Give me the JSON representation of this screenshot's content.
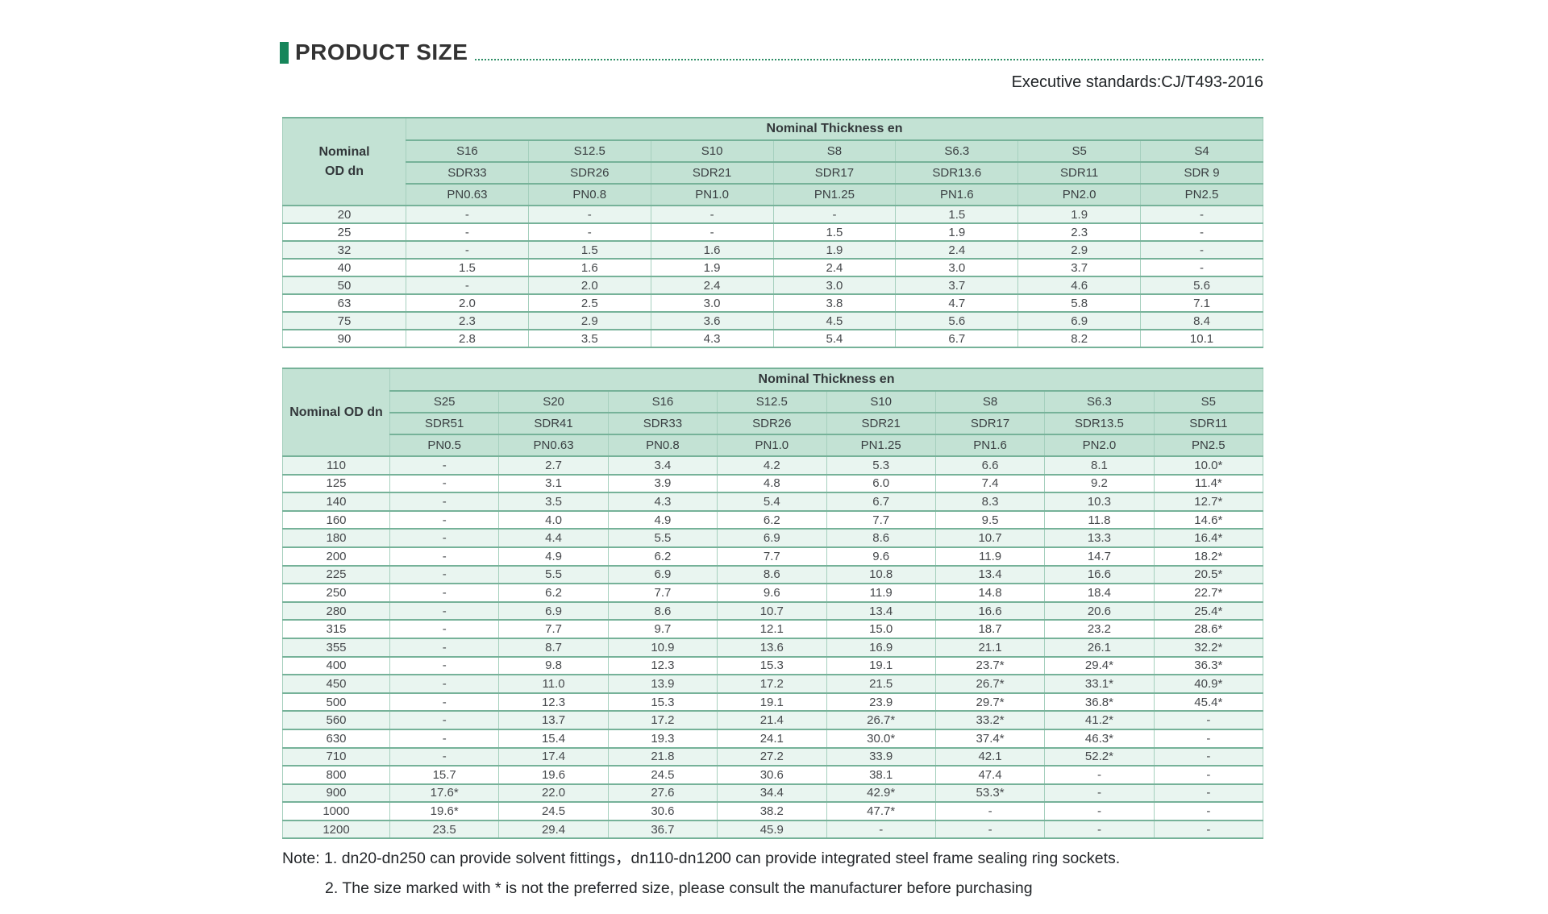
{
  "page": {
    "title": "PRODUCT SIZE",
    "standard": "Executive standards:CJ/T493-2016",
    "notes": [
      "Note: 1. dn20-dn250 can provide solvent fittings，dn110-dn1200 can provide integrated steel frame sealing ring sockets.",
      "2. The size marked with * is not the preferred size, please consult the manufacturer before purchasing"
    ]
  },
  "colors": {
    "accent_green": "#16855a",
    "dotted_line": "#2e8e66",
    "header_bg": "#c3e2d4",
    "row_mint": "#e9f5f0",
    "row_white": "#ffffff",
    "border_green": "#76b299",
    "text_dark": "#333333"
  },
  "table1": {
    "corner_lines": [
      "Nominal",
      "OD dn"
    ],
    "group_header": "Nominal Thickness en",
    "s_row": [
      "S16",
      "S12.5",
      "S10",
      "S8",
      "S6.3",
      "S5",
      "S4"
    ],
    "sdr_row": [
      "SDR33",
      "SDR26",
      "SDR21",
      "SDR17",
      "SDR13.6",
      "SDR11",
      "SDR 9"
    ],
    "pn_row": [
      "PN0.63",
      "PN0.8",
      "PN1.0",
      "PN1.25",
      "PN1.6",
      "PN2.0",
      "PN2.5"
    ],
    "rows": [
      {
        "dn": "20",
        "values": [
          "-",
          "-",
          "-",
          "-",
          "1.5",
          "1.9",
          "-"
        ]
      },
      {
        "dn": "25",
        "values": [
          "-",
          "-",
          "-",
          "1.5",
          "1.9",
          "2.3",
          "-"
        ]
      },
      {
        "dn": "32",
        "values": [
          "-",
          "1.5",
          "1.6",
          "1.9",
          "2.4",
          "2.9",
          "-"
        ]
      },
      {
        "dn": "40",
        "values": [
          "1.5",
          "1.6",
          "1.9",
          "2.4",
          "3.0",
          "3.7",
          "-"
        ]
      },
      {
        "dn": "50",
        "values": [
          "-",
          "2.0",
          "2.4",
          "3.0",
          "3.7",
          "4.6",
          "5.6"
        ]
      },
      {
        "dn": "63",
        "values": [
          "2.0",
          "2.5",
          "3.0",
          "3.8",
          "4.7",
          "5.8",
          "7.1"
        ]
      },
      {
        "dn": "75",
        "values": [
          "2.3",
          "2.9",
          "3.6",
          "4.5",
          "5.6",
          "6.9",
          "8.4"
        ]
      },
      {
        "dn": "90",
        "values": [
          "2.8",
          "3.5",
          "4.3",
          "5.4",
          "6.7",
          "8.2",
          "10.1"
        ]
      }
    ]
  },
  "table2": {
    "corner_lines": [
      "Nominal OD dn"
    ],
    "group_header": "Nominal Thickness en",
    "s_row": [
      "S25",
      "S20",
      "S16",
      "S12.5",
      "S10",
      "S8",
      "S6.3",
      "S5"
    ],
    "sdr_row": [
      "SDR51",
      "SDR41",
      "SDR33",
      "SDR26",
      "SDR21",
      "SDR17",
      "SDR13.5",
      "SDR11"
    ],
    "pn_row": [
      "PN0.5",
      "PN0.63",
      "PN0.8",
      "PN1.0",
      "PN1.25",
      "PN1.6",
      "PN2.0",
      "PN2.5"
    ],
    "rows": [
      {
        "dn": "110",
        "values": [
          "-",
          "2.7",
          "3.4",
          "4.2",
          "5.3",
          "6.6",
          "8.1",
          "10.0*"
        ]
      },
      {
        "dn": "125",
        "values": [
          "-",
          "3.1",
          "3.9",
          "4.8",
          "6.0",
          "7.4",
          "9.2",
          "11.4*"
        ]
      },
      {
        "dn": "140",
        "values": [
          "-",
          "3.5",
          "4.3",
          "5.4",
          "6.7",
          "8.3",
          "10.3",
          "12.7*"
        ]
      },
      {
        "dn": "160",
        "values": [
          "-",
          "4.0",
          "4.9",
          "6.2",
          "7.7",
          "9.5",
          "11.8",
          "14.6*"
        ]
      },
      {
        "dn": "180",
        "values": [
          "-",
          "4.4",
          "5.5",
          "6.9",
          "8.6",
          "10.7",
          "13.3",
          "16.4*"
        ]
      },
      {
        "dn": "200",
        "values": [
          "-",
          "4.9",
          "6.2",
          "7.7",
          "9.6",
          "11.9",
          "14.7",
          "18.2*"
        ]
      },
      {
        "dn": "225",
        "values": [
          "-",
          "5.5",
          "6.9",
          "8.6",
          "10.8",
          "13.4",
          "16.6",
          "20.5*"
        ]
      },
      {
        "dn": "250",
        "values": [
          "-",
          "6.2",
          "7.7",
          "9.6",
          "11.9",
          "14.8",
          "18.4",
          "22.7*"
        ]
      },
      {
        "dn": "280",
        "values": [
          "-",
          "6.9",
          "8.6",
          "10.7",
          "13.4",
          "16.6",
          "20.6",
          "25.4*"
        ]
      },
      {
        "dn": "315",
        "values": [
          "-",
          "7.7",
          "9.7",
          "12.1",
          "15.0",
          "18.7",
          "23.2",
          "28.6*"
        ]
      },
      {
        "dn": "355",
        "values": [
          "-",
          "8.7",
          "10.9",
          "13.6",
          "16.9",
          "21.1",
          "26.1",
          "32.2*"
        ]
      },
      {
        "dn": "400",
        "values": [
          "-",
          "9.8",
          "12.3",
          "15.3",
          "19.1",
          "23.7*",
          "29.4*",
          "36.3*"
        ]
      },
      {
        "dn": "450",
        "values": [
          "-",
          "11.0",
          "13.9",
          "17.2",
          "21.5",
          "26.7*",
          "33.1*",
          "40.9*"
        ]
      },
      {
        "dn": "500",
        "values": [
          "-",
          "12.3",
          "15.3",
          "19.1",
          "23.9",
          "29.7*",
          "36.8*",
          "45.4*"
        ]
      },
      {
        "dn": "560",
        "values": [
          "-",
          "13.7",
          "17.2",
          "21.4",
          "26.7*",
          "33.2*",
          "41.2*",
          "-"
        ]
      },
      {
        "dn": "630",
        "values": [
          "-",
          "15.4",
          "19.3",
          "24.1",
          "30.0*",
          "37.4*",
          "46.3*",
          "-"
        ]
      },
      {
        "dn": "710",
        "values": [
          "-",
          "17.4",
          "21.8",
          "27.2",
          "33.9",
          "42.1",
          "52.2*",
          "-"
        ]
      },
      {
        "dn": "800",
        "values": [
          "15.7",
          "19.6",
          "24.5",
          "30.6",
          "38.1",
          "47.4",
          "-",
          "-"
        ]
      },
      {
        "dn": "900",
        "values": [
          "17.6*",
          "22.0",
          "27.6",
          "34.4",
          "42.9*",
          "53.3*",
          "-",
          "-"
        ]
      },
      {
        "dn": "1000",
        "values": [
          "19.6*",
          "24.5",
          "30.6",
          "38.2",
          "47.7*",
          "-",
          "-",
          "-"
        ]
      },
      {
        "dn": "1200",
        "values": [
          "23.5",
          "29.4",
          "36.7",
          "45.9",
          "-",
          "-",
          "-",
          "-"
        ]
      }
    ]
  }
}
